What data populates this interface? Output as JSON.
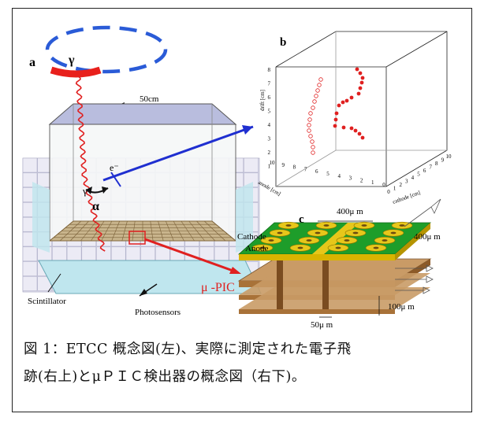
{
  "figure": {
    "panel_a": {
      "letter": "a",
      "gamma": "γ",
      "gamma_track": "γ",
      "electron": "e⁻",
      "alpha": "α",
      "size_label": "50cm",
      "scintillator": "Scintillator",
      "photosensors": "Photosensors",
      "mupic": "μ -PIC"
    },
    "panel_b": {
      "letter": "b",
      "z_axis_label": "drift [cm]",
      "x_axis_label": "cathode [cm]",
      "y_axis_label": "anode [cm]",
      "z_ticks": [
        "1",
        "2",
        "3",
        "4",
        "5",
        "6",
        "7",
        "8"
      ],
      "x_ticks": [
        "0",
        "1",
        "2",
        "3",
        "4",
        "5",
        "6",
        "7",
        "8",
        "9",
        "10"
      ],
      "y_ticks": [
        "10",
        "9",
        "8",
        "7",
        "6",
        "5",
        "4",
        "3",
        "2",
        "1",
        "0"
      ]
    },
    "panel_c": {
      "letter": "c",
      "cathode": "Cathode",
      "anode": "Anode",
      "pitch_top": "400μ m",
      "pitch_side": "400μ m",
      "thickness": "100μ m",
      "via": "50μ m"
    },
    "colors": {
      "ring": "#2a5bd7",
      "gamma_bar": "#e8201c",
      "track_blue": "#1f2fd0",
      "track_red": "#e02020",
      "pcb_green": "#1e9d2a",
      "scintillator": "#bfe6ee"
    }
  },
  "caption": {
    "line1": "図 1：ETCC 概念図(左)、実際に測定された電子飛",
    "line2": "跡(右上)とμＰＩＣ検出器の概念図（右下)。"
  }
}
